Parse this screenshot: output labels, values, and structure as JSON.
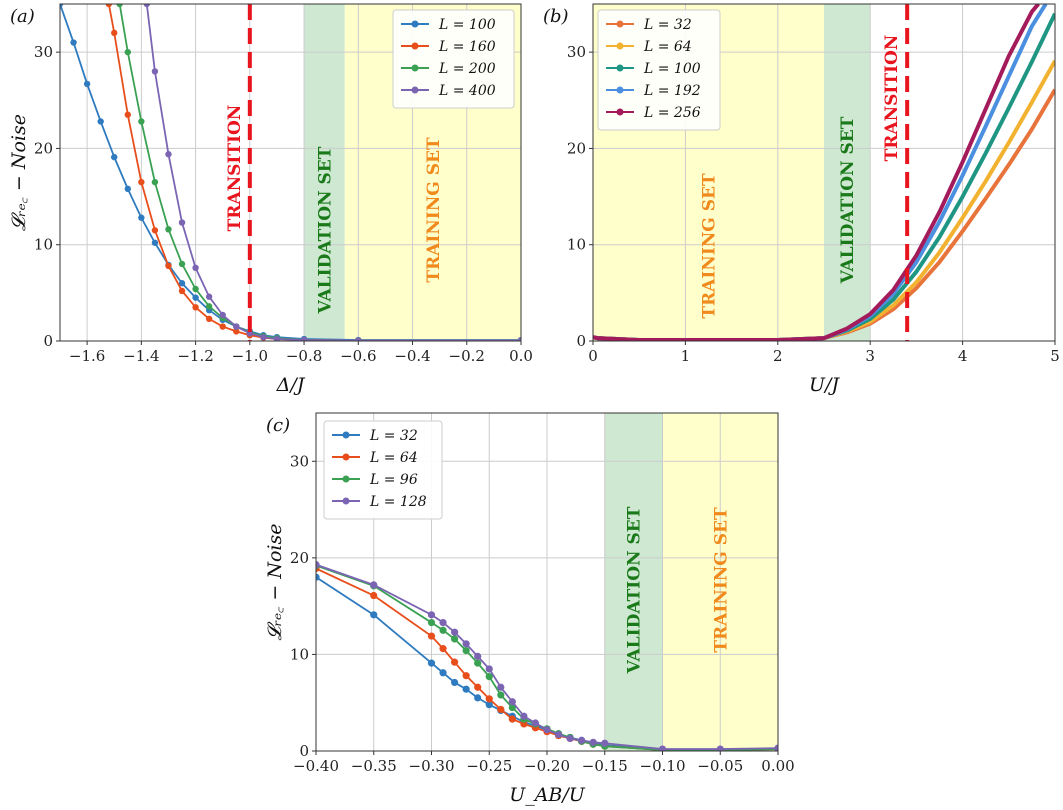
{
  "figure": {
    "colors": {
      "training": "#ffffcc",
      "validation": "#cfe8d2",
      "transition": "#e8141e",
      "training_text": "#f08a1c",
      "validation_text": "#1a7a1a",
      "grid": "#cccccc"
    }
  },
  "chart_data": [
    {
      "type": "line",
      "panel": "(a)",
      "xlabel": "Δ/J",
      "ylabel": "𝓛ᵣₑ꜀ − Noise",
      "xlim": [
        -1.7,
        0.0
      ],
      "ylim": [
        0,
        35
      ],
      "xticks": [
        -1.6,
        -1.4,
        -1.2,
        -1.0,
        -0.8,
        -0.6,
        -0.4,
        -0.2,
        0.0
      ],
      "xtick_labels": [
        "−1.6",
        "−1.4",
        "−1.2",
        "−1.0",
        "−0.8",
        "−0.6",
        "−0.4",
        "−0.2",
        "0.0"
      ],
      "yticks": [
        0,
        10,
        20,
        30
      ],
      "ytick_labels": [
        "0",
        "10",
        "20",
        "30"
      ],
      "grid": true,
      "legend": "top-right",
      "regions": [
        {
          "label": "VALIDATION SET",
          "x0": -0.8,
          "x1": -0.65,
          "kind": "validation"
        },
        {
          "label": "TRAINING SET",
          "x0": -0.65,
          "x1": 0.0,
          "kind": "training"
        }
      ],
      "transition": {
        "x": -1.0,
        "label": "TRANSITION"
      },
      "series": [
        {
          "name": "L = 100",
          "color": "#2f7bbf",
          "x": [
            -1.7,
            -1.65,
            -1.6,
            -1.55,
            -1.5,
            -1.45,
            -1.4,
            -1.35,
            -1.3,
            -1.25,
            -1.2,
            -1.15,
            -1.1,
            -1.05,
            -1.0,
            -0.95,
            -0.9,
            -0.8,
            -0.6,
            0.0
          ],
          "y": [
            35,
            31,
            26.7,
            22.8,
            19.1,
            15.8,
            12.8,
            10.2,
            7.9,
            6.0,
            4.5,
            3.2,
            2.2,
            1.5,
            1.0,
            0.6,
            0.4,
            0.2,
            0.1,
            0.1
          ]
        },
        {
          "name": "L = 160",
          "color": "#e84e1b",
          "x": [
            -1.52,
            -1.5,
            -1.45,
            -1.4,
            -1.35,
            -1.3,
            -1.25,
            -1.2,
            -1.15,
            -1.1,
            -1.05,
            -1.0,
            -0.95,
            -0.9,
            -0.8,
            -0.6,
            0.0
          ],
          "y": [
            35,
            32,
            23.5,
            16.5,
            11.5,
            7.8,
            5.2,
            3.5,
            2.3,
            1.5,
            1.0,
            0.6,
            0.35,
            0.2,
            0.1,
            0.05,
            0.05
          ]
        },
        {
          "name": "L = 200",
          "color": "#3aa153",
          "x": [
            -1.48,
            -1.45,
            -1.4,
            -1.35,
            -1.3,
            -1.25,
            -1.2,
            -1.15,
            -1.1,
            -1.05,
            -1.0,
            -0.95,
            -0.9,
            -0.8,
            -0.6,
            0.0
          ],
          "y": [
            35,
            30,
            22.8,
            16.5,
            11.6,
            8.0,
            5.4,
            3.6,
            2.4,
            1.5,
            0.9,
            0.5,
            0.3,
            0.1,
            0.05,
            0.05
          ]
        },
        {
          "name": "L = 400",
          "color": "#7b65b3",
          "x": [
            -1.38,
            -1.35,
            -1.3,
            -1.25,
            -1.2,
            -1.15,
            -1.1,
            -1.05,
            -1.0,
            -0.95,
            -0.9,
            -0.8,
            -0.6,
            0.0
          ],
          "y": [
            35,
            28,
            19.4,
            12.3,
            7.6,
            4.6,
            2.7,
            1.5,
            0.8,
            0.4,
            0.2,
            0.1,
            0.05,
            0.05
          ]
        }
      ]
    },
    {
      "type": "line",
      "panel": "(b)",
      "xlabel": "U/J",
      "ylabel": "",
      "xlim": [
        0,
        5
      ],
      "ylim": [
        0,
        35
      ],
      "xticks": [
        0,
        1,
        2,
        3,
        4,
        5
      ],
      "xtick_labels": [
        "0",
        "1",
        "2",
        "3",
        "4",
        "5"
      ],
      "yticks": [
        0,
        10,
        20,
        30
      ],
      "ytick_labels": [
        "0",
        "10",
        "20",
        "30"
      ],
      "grid": true,
      "legend": "top-left",
      "regions": [
        {
          "label": "TRAINING SET",
          "x0": 0.0,
          "x1": 2.5,
          "kind": "training"
        },
        {
          "label": "VALIDATION SET",
          "x0": 2.5,
          "x1": 3.0,
          "kind": "validation"
        }
      ],
      "transition": {
        "x": 3.4,
        "label": "TRANSITION"
      },
      "series": [
        {
          "name": "L = 32",
          "color": "#e8743b",
          "x": [
            0,
            0.05,
            0.5,
            1.0,
            1.5,
            2.0,
            2.5,
            2.75,
            3.0,
            3.25,
            3.5,
            3.75,
            4.0,
            4.25,
            4.5,
            4.75,
            5.0
          ],
          "y": [
            0.4,
            0.3,
            0.1,
            0.1,
            0.1,
            0.1,
            0.3,
            0.9,
            1.8,
            3.3,
            5.5,
            8.2,
            11.4,
            14.8,
            18.3,
            22.0,
            26.1
          ]
        },
        {
          "name": "L = 64",
          "color": "#f2b230",
          "x": [
            0,
            0.05,
            0.5,
            1.0,
            1.5,
            2.0,
            2.5,
            2.75,
            3.0,
            3.25,
            3.5,
            3.75,
            4.0,
            4.25,
            4.5,
            4.75,
            5.0
          ],
          "y": [
            0.4,
            0.3,
            0.1,
            0.1,
            0.1,
            0.1,
            0.3,
            1.0,
            2.0,
            3.7,
            6.1,
            9.2,
            12.8,
            16.6,
            20.6,
            24.8,
            29.1
          ]
        },
        {
          "name": "L = 100",
          "color": "#1e9683",
          "x": [
            0,
            0.05,
            0.5,
            1.0,
            1.5,
            2.0,
            2.5,
            2.75,
            3.0,
            3.25,
            3.5,
            3.75,
            4.0,
            4.25,
            4.5,
            4.75,
            5.0
          ],
          "y": [
            0.4,
            0.3,
            0.1,
            0.1,
            0.1,
            0.1,
            0.3,
            1.1,
            2.3,
            4.3,
            7.2,
            10.8,
            15.0,
            19.5,
            24.2,
            29.0,
            34.0
          ]
        },
        {
          "name": "L = 192",
          "color": "#4b8fe0",
          "x": [
            0,
            0.05,
            0.5,
            1.0,
            1.5,
            2.0,
            2.5,
            2.75,
            3.0,
            3.25,
            3.5,
            3.75,
            4.0,
            4.25,
            4.5,
            4.75,
            4.9
          ],
          "y": [
            0.4,
            0.3,
            0.1,
            0.1,
            0.1,
            0.1,
            0.3,
            1.2,
            2.6,
            4.9,
            8.2,
            12.4,
            17.2,
            22.3,
            27.5,
            32.7,
            35.0
          ]
        },
        {
          "name": "L = 256",
          "color": "#a31b5b",
          "x": [
            0,
            0.05,
            0.5,
            1.0,
            1.5,
            2.0,
            2.5,
            2.75,
            3.0,
            3.25,
            3.5,
            3.75,
            4.0,
            4.25,
            4.5,
            4.75,
            4.82
          ],
          "y": [
            0.4,
            0.3,
            0.1,
            0.1,
            0.1,
            0.1,
            0.3,
            1.3,
            2.8,
            5.3,
            8.9,
            13.4,
            18.6,
            24.1,
            29.6,
            34.2,
            35.0
          ]
        }
      ]
    },
    {
      "type": "line",
      "panel": "(c)",
      "xlabel": "U_AB/U",
      "ylabel": "𝓛ᵣₑ꜀ − Noise",
      "xlim": [
        -0.4,
        0.0
      ],
      "ylim": [
        0,
        35
      ],
      "xticks": [
        -0.4,
        -0.35,
        -0.3,
        -0.25,
        -0.2,
        -0.15,
        -0.1,
        -0.05,
        0.0
      ],
      "xtick_labels": [
        "−0.40",
        "−0.35",
        "−0.30",
        "−0.25",
        "−0.20",
        "−0.15",
        "−0.10",
        "−0.05",
        "0.00"
      ],
      "yticks": [
        0,
        10,
        20,
        30
      ],
      "ytick_labels": [
        "0",
        "10",
        "20",
        "30"
      ],
      "grid": true,
      "legend": "top-left",
      "regions": [
        {
          "label": "VALIDATION SET",
          "x0": -0.15,
          "x1": -0.1,
          "kind": "validation"
        },
        {
          "label": "TRAINING SET",
          "x0": -0.1,
          "x1": 0.0,
          "kind": "training"
        }
      ],
      "series": [
        {
          "name": "L = 32",
          "color": "#2f7bbf",
          "x": [
            -0.4,
            -0.35,
            -0.3,
            -0.29,
            -0.28,
            -0.27,
            -0.26,
            -0.25,
            -0.24,
            -0.23,
            -0.22,
            -0.21,
            -0.2,
            -0.19,
            -0.18,
            -0.17,
            -0.16,
            -0.15,
            -0.1,
            -0.05,
            0.0
          ],
          "y": [
            18.0,
            14.1,
            9.1,
            8.1,
            7.1,
            6.4,
            5.5,
            4.8,
            4.2,
            3.6,
            3.0,
            2.6,
            2.2,
            1.7,
            1.4,
            1.1,
            0.8,
            0.6,
            0.1,
            0.1,
            0.2
          ]
        },
        {
          "name": "L = 64",
          "color": "#e84e1b",
          "x": [
            -0.4,
            -0.35,
            -0.3,
            -0.29,
            -0.28,
            -0.27,
            -0.26,
            -0.25,
            -0.24,
            -0.23,
            -0.22,
            -0.21,
            -0.2,
            -0.19,
            -0.18,
            -0.17,
            -0.16,
            -0.15,
            -0.1,
            -0.05,
            0.0
          ],
          "y": [
            18.9,
            16.1,
            11.9,
            10.6,
            9.2,
            7.8,
            6.6,
            5.4,
            4.3,
            3.3,
            2.8,
            2.4,
            2.0,
            1.6,
            1.3,
            1.0,
            0.7,
            0.5,
            0.1,
            0.1,
            0.2
          ]
        },
        {
          "name": "L = 96",
          "color": "#3aa153",
          "x": [
            -0.4,
            -0.35,
            -0.3,
            -0.29,
            -0.28,
            -0.27,
            -0.26,
            -0.25,
            -0.24,
            -0.23,
            -0.22,
            -0.21,
            -0.2,
            -0.19,
            -0.18,
            -0.17,
            -0.16,
            -0.15,
            -0.1,
            -0.05,
            0.0
          ],
          "y": [
            19.2,
            17.1,
            13.3,
            12.5,
            11.6,
            10.4,
            9.1,
            7.7,
            5.8,
            4.5,
            3.3,
            2.8,
            2.3,
            1.8,
            1.4,
            1.0,
            0.7,
            0.5,
            0.1,
            0.1,
            0.2
          ]
        },
        {
          "name": "L = 128",
          "color": "#7b65b3",
          "x": [
            -0.4,
            -0.35,
            -0.3,
            -0.29,
            -0.28,
            -0.27,
            -0.26,
            -0.25,
            -0.24,
            -0.23,
            -0.22,
            -0.21,
            -0.2,
            -0.19,
            -0.18,
            -0.17,
            -0.16,
            -0.15,
            -0.1,
            -0.05,
            0.0
          ],
          "y": [
            19.3,
            17.2,
            14.1,
            13.3,
            12.3,
            11.1,
            9.8,
            8.5,
            6.6,
            5.1,
            3.6,
            2.9,
            2.2,
            1.7,
            1.3,
            1.1,
            0.9,
            0.8,
            0.2,
            0.2,
            0.3
          ]
        }
      ]
    }
  ]
}
